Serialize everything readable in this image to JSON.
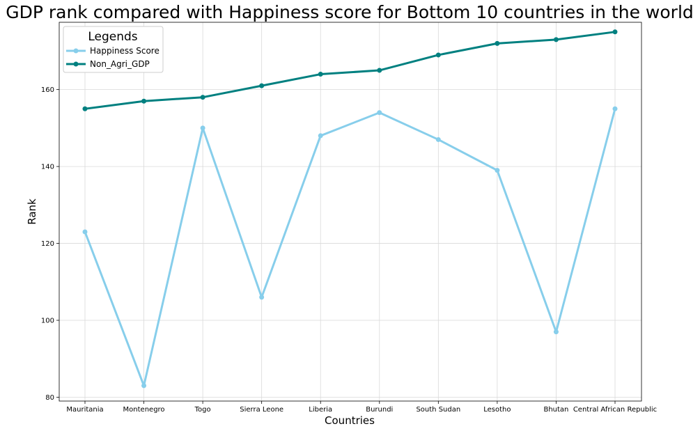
{
  "chart_data": {
    "type": "line",
    "title": "GDP rank compared with Happiness score for Bottom 10 countries in the world",
    "xlabel": "Countries",
    "ylabel": "Rank",
    "categories": [
      "Mauritania",
      "Montenegro",
      "Togo",
      "Sierra Leone",
      "Liberia",
      "Burundi",
      "South Sudan",
      "Lesotho",
      "Bhutan",
      "Central African Republic"
    ],
    "series": [
      {
        "name": "Happiness Score",
        "color": "#87ceeb",
        "values": [
          123,
          83,
          150,
          106,
          148,
          154,
          147,
          139,
          97,
          155
        ]
      },
      {
        "name": "Non_Agri_GDP",
        "color": "#008080",
        "values": [
          155,
          157,
          158,
          161,
          164,
          165,
          169,
          172,
          173,
          175
        ]
      }
    ],
    "ylim": [
      79,
      177.5
    ],
    "yticks": [
      80,
      100,
      120,
      140,
      160
    ],
    "grid": true,
    "legend": {
      "title": "Legends",
      "placement": "top-left"
    }
  }
}
